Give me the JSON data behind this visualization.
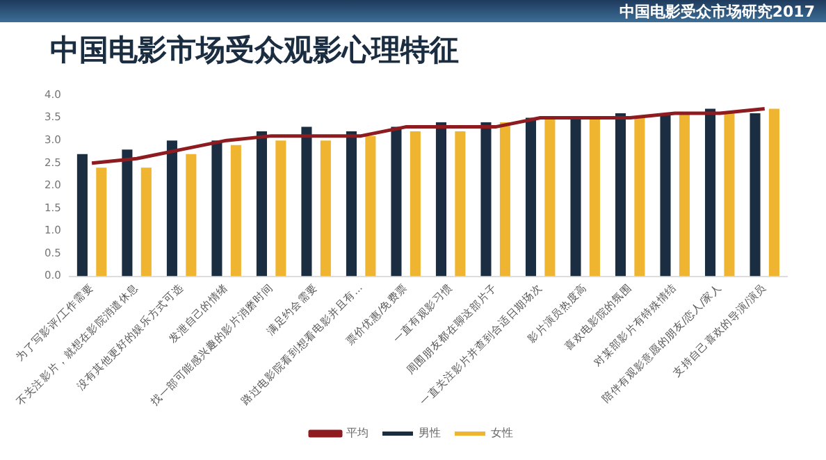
{
  "chart_data": {
    "type": "bar",
    "title": "中国电影市场受众观影心理特征",
    "annotations": [
      "中国电影受众市场研究2017"
    ],
    "categories": [
      "为了写影评/工作需要",
      "不关注影片，就想在影院消遣休息",
      "没有其他更好的娱乐方式可选",
      "发泄自己的情绪",
      "找一部可能感兴趣的影片消磨时间",
      "满足约会需要",
      "路过电影院看到想看电影并且有...",
      "票价优惠/免费票",
      "一直有观影习惯",
      "周围朋友都在聊这部片子",
      "一直关注影片并查到合适日期场次",
      "影片演员热度高",
      "喜欢电影院的氛围",
      "对某部影片有特殊情结",
      "陪伴有观影意愿的朋友/恋人/家人",
      "支持自己喜欢的导演/演员"
    ],
    "series": [
      {
        "name": "男性",
        "color": "#1b2d40",
        "values": [
          2.7,
          2.8,
          3.0,
          3.0,
          3.2,
          3.3,
          3.2,
          3.3,
          3.4,
          3.4,
          3.5,
          3.5,
          3.6,
          3.6,
          3.7,
          3.6
        ]
      },
      {
        "name": "女性",
        "color": "#f0b530",
        "values": [
          2.4,
          2.4,
          2.7,
          2.9,
          3.0,
          3.0,
          3.1,
          3.2,
          3.2,
          3.4,
          3.5,
          3.5,
          3.5,
          3.6,
          3.6,
          3.7
        ]
      },
      {
        "name": "平均",
        "type": "line",
        "color": "#8e1b1f",
        "values": [
          2.5,
          2.6,
          2.8,
          3.0,
          3.1,
          3.1,
          3.1,
          3.3,
          3.3,
          3.3,
          3.5,
          3.5,
          3.5,
          3.6,
          3.6,
          3.7
        ]
      }
    ],
    "ylim": [
      0,
      4
    ],
    "yticks": [
      {
        "value": 0,
        "label": "0.0"
      },
      {
        "value": 0.5,
        "label": "0.5"
      },
      {
        "value": 1,
        "label": "1.0"
      },
      {
        "value": 1.5,
        "label": "1.5"
      },
      {
        "value": 2,
        "label": "2.0"
      },
      {
        "value": 2.5,
        "label": "2.5"
      },
      {
        "value": 3,
        "label": "3.0"
      },
      {
        "value": 3.5,
        "label": "3.5"
      },
      {
        "value": 4,
        "label": "4.0"
      }
    ],
    "grid": false,
    "legend": "bottom",
    "marker": "none"
  }
}
